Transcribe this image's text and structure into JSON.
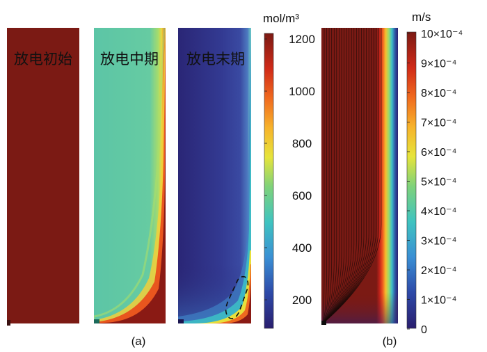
{
  "panel_a": {
    "caption": "(a)",
    "panels": [
      {
        "title": "放电初始"
      },
      {
        "title": "放电中期"
      },
      {
        "title": "放电末期"
      }
    ],
    "colorbar": {
      "unit": "mol/m³",
      "ticks": [
        "1200",
        "1000",
        "800",
        "600",
        "400",
        "200"
      ]
    }
  },
  "panel_b": {
    "caption": "(b)",
    "colorbar": {
      "unit": "m/s",
      "ticks": [
        "10×10⁻⁴",
        "9×10⁻⁴",
        "8×10⁻⁴",
        "7×10⁻⁴",
        "6×10⁻⁴",
        "5×10⁻⁴",
        "4×10⁻⁴",
        "3×10⁻⁴",
        "2×10⁻⁴",
        "1×10⁻⁴",
        "0"
      ]
    }
  },
  "colors": {
    "initial_fill": "#7b1a14",
    "mid_bulk": "#5fc8a8",
    "end_bulk": "#2f2f86",
    "streamline": "#1a0b08",
    "annotation_dash": "#111111"
  }
}
